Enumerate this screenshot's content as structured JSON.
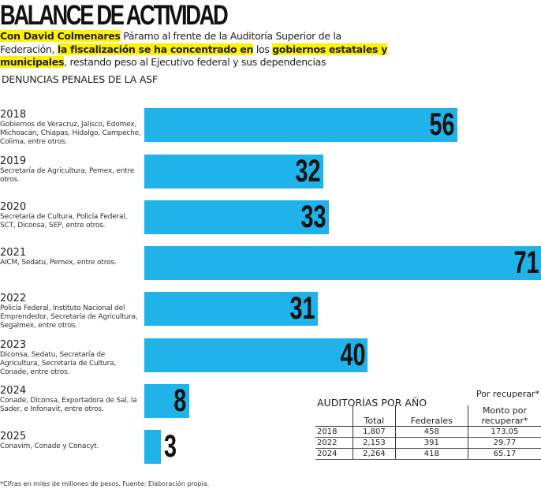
{
  "title": "BALANCE DE ACTIVIDAD",
  "subtitle": {
    "p1": "Con David Colmenares",
    "p2": " Páramo al frente de la Auditoría Superior de la Federación, ",
    "p3": "la fiscalización se ha concentrado en",
    "p4": " los ",
    "p5": "gobiernos estatales y municipales",
    "p6": ", restando peso al Ejecutivo federal y sus dependencias"
  },
  "section_title": "DENUNCIAS PENALES DE LA ASF",
  "colors": {
    "bar": "#1fb3ea",
    "highlight": "#fff200"
  },
  "chart_data": {
    "type": "bar",
    "orientation": "horizontal",
    "categories": [
      "2018",
      "2019",
      "2020",
      "2021",
      "2022",
      "2023",
      "2024",
      "2025"
    ],
    "values": [
      56,
      32,
      33,
      71,
      31,
      40,
      8,
      3
    ],
    "descriptions": [
      "Gobiernos de Veracruz, Jalisco, Edomex, Michoacán, Chiapas, Hidalgo, Campeche, Colima, entre otros.",
      "Secretaría de Agricultura, Pemex, entre otros.",
      "Secretaría de Cultura, Policía Federal, SCT, Diconsa, SEP, entre otros.",
      "AICM, Sedatu, Pemex, entre otros.",
      "Policía Federal, Instituto Nacional del Emprendedor, Secretaría de Agricultura, Segalmex, entre otros.",
      "Diconsa, Sedatu, Secretaría de Agricultura, Secretaría de Cultura, Conade, entre otros.",
      "Conade, Diconsa, Exportadora de Sal, la Sader, e Infonavit, entre otros.",
      "Conavim, Conade y Conacyt."
    ],
    "xlim": [
      0,
      71
    ],
    "grid": false
  },
  "table": {
    "title": "AUDITORÍAS POR AÑO",
    "note": "Por recuperar*",
    "headers": [
      "",
      "Total",
      "Federales",
      "Monto por recuperar*"
    ],
    "rows": [
      [
        "2018",
        "1,807",
        "458",
        "173.05"
      ],
      [
        "2022",
        "2,153",
        "391",
        "29.77"
      ],
      [
        "2024",
        "2,264",
        "418",
        "65.17"
      ]
    ]
  },
  "footnote": "*Cifras en miles de millones de pesos. Fuente: Elaboración propia."
}
